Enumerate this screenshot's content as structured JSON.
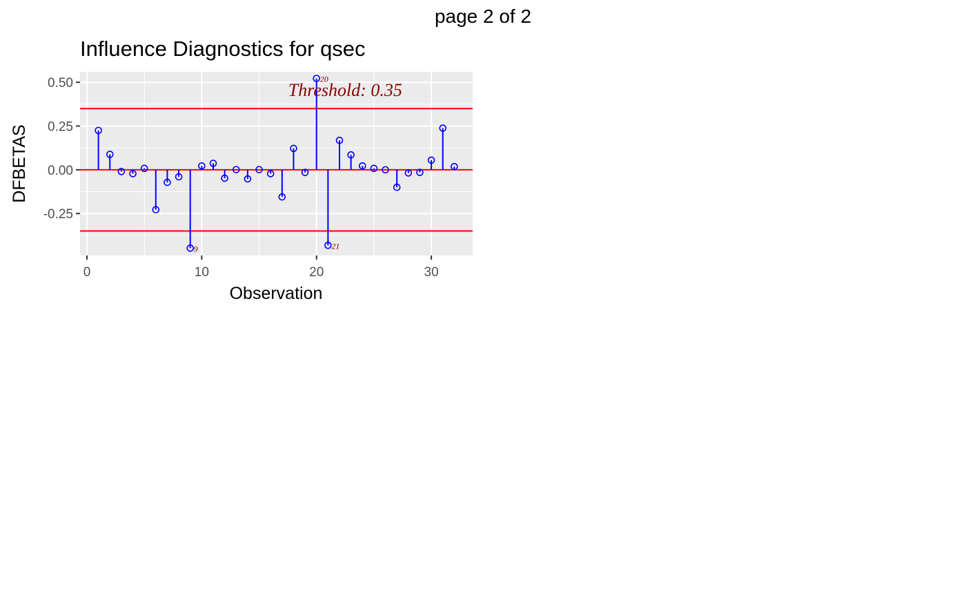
{
  "page": {
    "label": "page 2 of 2"
  },
  "chart_data": {
    "type": "scatter",
    "style": "lollipop",
    "title": "Influence Diagnostics for qsec",
    "xlabel": "Observation",
    "ylabel": "DFBETAS",
    "xlim": [
      -0.6,
      33.6
    ],
    "ylim": [
      -0.49,
      0.56
    ],
    "x_ticks": [
      0,
      10,
      20,
      30
    ],
    "x_tick_labels": [
      "0",
      "10",
      "20",
      "30"
    ],
    "y_ticks": [
      0.5,
      0.25,
      0.0,
      -0.25
    ],
    "y_tick_labels": [
      "0.50",
      "0.25",
      "0.00",
      "-0.25"
    ],
    "x_minor_ticks": [
      5,
      15,
      25
    ],
    "y_minor_ticks": [
      0.375,
      0.125,
      -0.125,
      -0.375
    ],
    "grid": true,
    "legend": "none",
    "threshold": {
      "value": 0.35,
      "label": "Threshold: 0.35",
      "lines": [
        0.35,
        -0.35
      ],
      "color": "#ff0000"
    },
    "zero_line": {
      "value": 0,
      "color": "#ff0000"
    },
    "point_color": "#0000ff",
    "annotation_color": "#8b0000",
    "panel_background": "#ebebeb",
    "points": [
      {
        "x": 1,
        "y": 0.225
      },
      {
        "x": 2,
        "y": 0.088
      },
      {
        "x": 3,
        "y": -0.01
      },
      {
        "x": 4,
        "y": -0.022
      },
      {
        "x": 5,
        "y": 0.008
      },
      {
        "x": 6,
        "y": -0.228
      },
      {
        "x": 7,
        "y": -0.072
      },
      {
        "x": 8,
        "y": -0.04
      },
      {
        "x": 9,
        "y": -0.448,
        "label": "9"
      },
      {
        "x": 10,
        "y": 0.022
      },
      {
        "x": 11,
        "y": 0.037
      },
      {
        "x": 12,
        "y": -0.048
      },
      {
        "x": 13,
        "y": 0.001
      },
      {
        "x": 14,
        "y": -0.052
      },
      {
        "x": 15,
        "y": 0.001
      },
      {
        "x": 16,
        "y": -0.022
      },
      {
        "x": 17,
        "y": -0.155
      },
      {
        "x": 18,
        "y": 0.122
      },
      {
        "x": 19,
        "y": -0.015
      },
      {
        "x": 20,
        "y": 0.522,
        "label": "20"
      },
      {
        "x": 21,
        "y": -0.432,
        "label": "21"
      },
      {
        "x": 22,
        "y": 0.168
      },
      {
        "x": 23,
        "y": 0.085
      },
      {
        "x": 24,
        "y": 0.022
      },
      {
        "x": 25,
        "y": 0.008
      },
      {
        "x": 26,
        "y": 0.0
      },
      {
        "x": 27,
        "y": -0.1
      },
      {
        "x": 28,
        "y": -0.018
      },
      {
        "x": 29,
        "y": -0.015
      },
      {
        "x": 30,
        "y": 0.055
      },
      {
        "x": 31,
        "y": 0.238
      },
      {
        "x": 32,
        "y": 0.018
      }
    ]
  }
}
